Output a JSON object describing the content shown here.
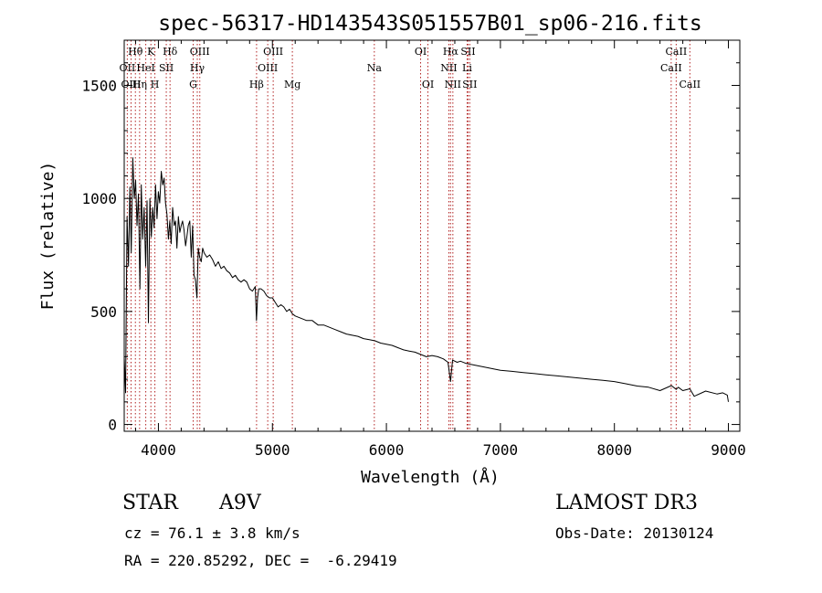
{
  "chart_data": {
    "type": "line",
    "title": "spec-56317-HD143543S051557B01_sp06-216.fits",
    "xlabel": "Wavelength (Å)",
    "ylabel": "Flux (relative)",
    "xlim": [
      3700,
      9100
    ],
    "ylim": [
      -30,
      1700
    ],
    "xticks": [
      4000,
      5000,
      6000,
      7000,
      8000,
      9000
    ],
    "yticks": [
      0,
      500,
      1000,
      1500
    ],
    "series": [
      {
        "name": "spectrum",
        "x": [
          3700,
          3712,
          3725,
          3738,
          3750,
          3762,
          3775,
          3788,
          3800,
          3812,
          3825,
          3838,
          3850,
          3862,
          3875,
          3888,
          3900,
          3912,
          3925,
          3938,
          3950,
          3962,
          3975,
          3988,
          4000,
          4012,
          4025,
          4038,
          4050,
          4062,
          4075,
          4088,
          4100,
          4112,
          4125,
          4138,
          4150,
          4162,
          4175,
          4188,
          4200,
          4212,
          4225,
          4238,
          4250,
          4262,
          4275,
          4288,
          4300,
          4312,
          4325,
          4338,
          4350,
          4362,
          4375,
          4388,
          4400,
          4425,
          4450,
          4475,
          4500,
          4525,
          4550,
          4575,
          4600,
          4625,
          4650,
          4675,
          4700,
          4725,
          4750,
          4775,
          4800,
          4825,
          4850,
          4860,
          4870,
          4880,
          4900,
          4925,
          4950,
          4975,
          5000,
          5025,
          5050,
          5075,
          5100,
          5125,
          5150,
          5175,
          5200,
          5250,
          5300,
          5350,
          5400,
          5450,
          5500,
          5550,
          5600,
          5650,
          5700,
          5750,
          5800,
          5850,
          5900,
          5950,
          6000,
          6050,
          6100,
          6150,
          6200,
          6250,
          6300,
          6350,
          6400,
          6450,
          6500,
          6540,
          6563,
          6580,
          6620,
          6650,
          6700,
          6750,
          6800,
          6850,
          6900,
          6950,
          7000,
          7100,
          7200,
          7300,
          7400,
          7500,
          7600,
          7700,
          7800,
          7900,
          8000,
          8100,
          8200,
          8300,
          8400,
          8500,
          8542,
          8560,
          8600,
          8662,
          8700,
          8800,
          8900,
          8950,
          8990,
          9000
        ],
        "values": [
          300,
          140,
          920,
          700,
          1050,
          760,
          1180,
          1000,
          1080,
          880,
          1020,
          600,
          1060,
          820,
          960,
          700,
          990,
          450,
          1000,
          830,
          960,
          870,
          1060,
          910,
          1030,
          980,
          1120,
          1060,
          1090,
          980,
          930,
          820,
          900,
          800,
          960,
          880,
          900,
          780,
          920,
          850,
          880,
          900,
          860,
          790,
          830,
          880,
          900,
          740,
          880,
          660,
          640,
          560,
          780,
          740,
          720,
          780,
          760,
          740,
          750,
          730,
          700,
          720,
          690,
          700,
          680,
          670,
          650,
          660,
          640,
          630,
          640,
          630,
          600,
          590,
          610,
          460,
          560,
          600,
          600,
          590,
          570,
          560,
          560,
          540,
          520,
          530,
          520,
          500,
          510,
          490,
          480,
          470,
          460,
          460,
          440,
          440,
          430,
          420,
          410,
          400,
          395,
          390,
          380,
          375,
          370,
          360,
          355,
          350,
          340,
          330,
          325,
          320,
          310,
          300,
          305,
          300,
          290,
          275,
          190,
          285,
          275,
          280,
          270,
          265,
          260,
          255,
          250,
          245,
          240,
          235,
          230,
          225,
          220,
          215,
          210,
          205,
          200,
          195,
          190,
          180,
          170,
          165,
          150,
          172,
          155,
          165,
          150,
          158,
          125,
          148,
          135,
          140,
          130,
          100
        ]
      }
    ],
    "line_annotations": [
      {
        "label": "Hθ",
        "x": 3798,
        "row": 0
      },
      {
        "label": "OII",
        "x": 3727,
        "row": 1
      },
      {
        "label": "OIII",
        "x": 3760,
        "row": 2
      },
      {
        "label": "K",
        "x": 3934,
        "row": 0
      },
      {
        "label": "HeI",
        "x": 3889,
        "row": 1
      },
      {
        "label": "Hη",
        "x": 3835,
        "row": 2
      },
      {
        "label": "Hδ",
        "x": 4102,
        "row": 0
      },
      {
        "label": "SII",
        "x": 4069,
        "row": 1
      },
      {
        "label": "H",
        "x": 3969,
        "row": 2
      },
      {
        "label": "OIII",
        "x": 4363,
        "row": 0
      },
      {
        "label": "Hγ",
        "x": 4341,
        "row": 1
      },
      {
        "label": "G",
        "x": 4305,
        "row": 2
      },
      {
        "label": "OIII",
        "x": 5007,
        "row": 0
      },
      {
        "label": "OIII",
        "x": 4959,
        "row": 1
      },
      {
        "label": "Hβ",
        "x": 4861,
        "row": 2
      },
      {
        "label": "Mg",
        "x": 5175,
        "row": 2
      },
      {
        "label": "Na",
        "x": 5894,
        "row": 1
      },
      {
        "label": "OI",
        "x": 6300,
        "row": 0
      },
      {
        "label": "OI",
        "x": 6364,
        "row": 2
      },
      {
        "label": "Hα",
        "x": 6563,
        "row": 0
      },
      {
        "label": "SII",
        "x": 6716,
        "row": 0
      },
      {
        "label": "NII",
        "x": 6548,
        "row": 1
      },
      {
        "label": "Li",
        "x": 6708,
        "row": 1
      },
      {
        "label": "NII",
        "x": 6583,
        "row": 2
      },
      {
        "label": "SII",
        "x": 6731,
        "row": 2
      },
      {
        "label": "CaII",
        "x": 8542,
        "row": 0
      },
      {
        "label": "CaII",
        "x": 8498,
        "row": 1
      },
      {
        "label": "CaII",
        "x": 8662,
        "row": 2
      }
    ]
  },
  "info": {
    "object_class": "STAR",
    "subclass": "A9V",
    "survey": "LAMOST DR3",
    "redshift": "cz = 76.1 ± 3.8 km/s",
    "obs_date": "Obs-Date: 20130124",
    "coords": "RA = 220.85292, DEC =  -6.29419"
  },
  "colors": {
    "spectrum": "#000000",
    "line_markers": "#b22222",
    "axes": "#000000",
    "background": "#ffffff"
  }
}
